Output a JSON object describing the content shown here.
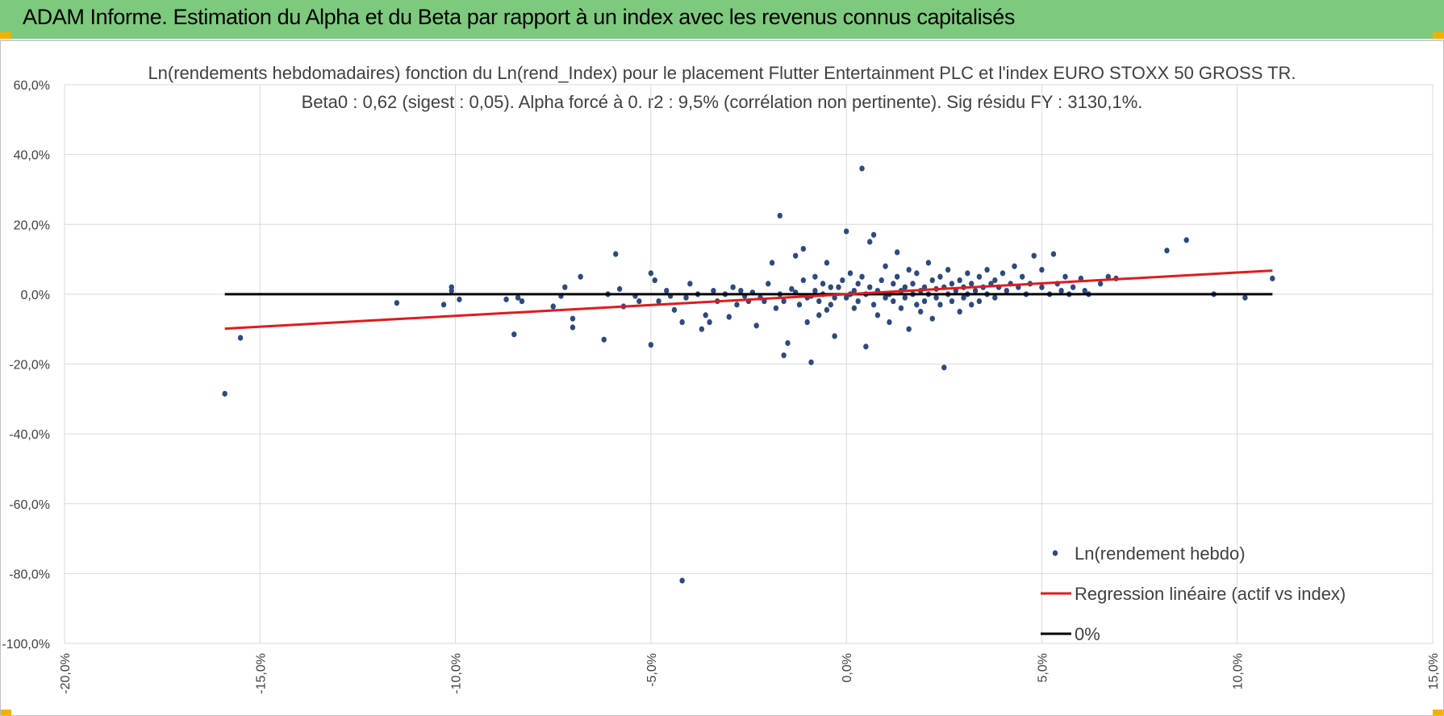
{
  "banner": {
    "title": "ADAM Informe. Estimation du Alpha et du Beta par rapport à un index avec les revenus connus capitalisés"
  },
  "colors": {
    "banner": "#7dc97d",
    "points": "#2e4a7d",
    "regression": "#e31a1c",
    "zero": "#000000",
    "grid": "#d9d9d9",
    "accent": "#f2b100"
  },
  "chart_data": {
    "type": "scatter",
    "title": "Ln(rendements hebdomadaires) fonction du Ln(rend_Index) pour le placement Flutter Entertainment PLC et l'index EURO STOXX 50 GROSS TR.",
    "subtitle": "Beta0 : 0,62 (sigest : 0,05).  Alpha forcé à 0. r2 : 9,5% (corrélation non pertinente). Sig résidu FY : 3130,1%.",
    "xlim": [
      -0.2,
      0.15
    ],
    "ylim": [
      -1.0,
      0.6
    ],
    "x_ticks": [
      -0.2,
      -0.15,
      -0.1,
      -0.05,
      0.0,
      0.05,
      0.1,
      0.15
    ],
    "x_tick_labels": [
      "-20,0%",
      "-15,0%",
      "-10,0%",
      "-5,0%",
      "0,0%",
      "5,0%",
      "10,0%",
      "15,0%"
    ],
    "y_ticks": [
      0.6,
      0.4,
      0.2,
      0.0,
      -0.2,
      -0.4,
      -0.6,
      -0.8,
      -1.0
    ],
    "y_tick_labels": [
      "60,0%",
      "40,0%",
      "20,0%",
      "0,0%",
      "-20,0%",
      "-40,0%",
      "-60,0%",
      "-80,0%",
      "-100,0%"
    ],
    "legend": {
      "position": "bottom-right",
      "entries": [
        "Ln(rendement hebdo)",
        "Regression linéaire (actif vs index)",
        "0%"
      ]
    },
    "series": [
      {
        "name": "Ln(rendement hebdo)",
        "kind": "scatter",
        "points": [
          [
            -0.159,
            -0.285
          ],
          [
            -0.155,
            -0.125
          ],
          [
            -0.115,
            -0.025
          ],
          [
            -0.103,
            -0.03
          ],
          [
            -0.101,
            0.01
          ],
          [
            -0.101,
            0.02
          ],
          [
            -0.099,
            -0.015
          ],
          [
            -0.087,
            -0.015
          ],
          [
            -0.085,
            -0.115
          ],
          [
            -0.084,
            -0.01
          ],
          [
            -0.083,
            -0.02
          ],
          [
            -0.075,
            -0.035
          ],
          [
            -0.073,
            -0.005
          ],
          [
            -0.072,
            0.02
          ],
          [
            -0.07,
            -0.07
          ],
          [
            -0.07,
            -0.095
          ],
          [
            -0.068,
            0.05
          ],
          [
            -0.062,
            -0.13
          ],
          [
            -0.061,
            0.0
          ],
          [
            -0.059,
            0.115
          ],
          [
            -0.058,
            0.015
          ],
          [
            -0.057,
            -0.035
          ],
          [
            -0.054,
            -0.005
          ],
          [
            -0.053,
            -0.02
          ],
          [
            -0.05,
            -0.145
          ],
          [
            -0.05,
            0.06
          ],
          [
            -0.049,
            0.04
          ],
          [
            -0.048,
            -0.02
          ],
          [
            -0.046,
            0.01
          ],
          [
            -0.045,
            -0.005
          ],
          [
            -0.044,
            -0.045
          ],
          [
            -0.042,
            -0.82
          ],
          [
            -0.042,
            -0.08
          ],
          [
            -0.041,
            -0.01
          ],
          [
            -0.04,
            0.03
          ],
          [
            -0.038,
            0.0
          ],
          [
            -0.037,
            -0.1
          ],
          [
            -0.036,
            -0.06
          ],
          [
            -0.035,
            -0.08
          ],
          [
            -0.034,
            0.01
          ],
          [
            -0.033,
            -0.02
          ],
          [
            -0.031,
            0.0
          ],
          [
            -0.03,
            -0.065
          ],
          [
            -0.029,
            0.02
          ],
          [
            -0.028,
            -0.03
          ],
          [
            -0.027,
            0.01
          ],
          [
            -0.026,
            -0.005
          ],
          [
            -0.025,
            -0.02
          ],
          [
            -0.024,
            0.005
          ],
          [
            -0.023,
            -0.09
          ],
          [
            -0.022,
            -0.01
          ],
          [
            -0.021,
            -0.02
          ],
          [
            -0.02,
            0.03
          ],
          [
            -0.019,
            0.09
          ],
          [
            -0.018,
            -0.04
          ],
          [
            -0.017,
            0.0
          ],
          [
            -0.016,
            -0.02
          ],
          [
            -0.015,
            -0.14
          ],
          [
            -0.014,
            0.015
          ],
          [
            -0.013,
            0.005
          ],
          [
            -0.012,
            -0.03
          ],
          [
            -0.011,
            0.04
          ],
          [
            -0.01,
            -0.01
          ],
          [
            -0.009,
            -0.005
          ],
          [
            -0.008,
            0.01
          ],
          [
            -0.007,
            -0.02
          ],
          [
            -0.006,
            0.0
          ],
          [
            -0.005,
            -0.045
          ],
          [
            -0.004,
            0.02
          ],
          [
            -0.003,
            -0.01
          ],
          [
            -0.017,
            0.225
          ],
          [
            -0.016,
            -0.175
          ],
          [
            -0.013,
            0.11
          ],
          [
            -0.011,
            0.13
          ],
          [
            -0.01,
            -0.08
          ],
          [
            -0.009,
            -0.195
          ],
          [
            -0.008,
            0.05
          ],
          [
            -0.007,
            -0.06
          ],
          [
            -0.006,
            0.03
          ],
          [
            -0.005,
            0.09
          ],
          [
            -0.004,
            -0.03
          ],
          [
            -0.003,
            -0.12
          ],
          [
            -0.002,
            0.02
          ],
          [
            -0.001,
            0.04
          ],
          [
            0.0,
            -0.01
          ],
          [
            0.0,
            0.18
          ],
          [
            0.001,
            0.0
          ],
          [
            0.001,
            0.06
          ],
          [
            0.002,
            -0.04
          ],
          [
            0.002,
            0.01
          ],
          [
            0.003,
            0.03
          ],
          [
            0.003,
            -0.02
          ],
          [
            0.004,
            0.36
          ],
          [
            0.004,
            0.05
          ],
          [
            0.005,
            -0.15
          ],
          [
            0.005,
            0.0
          ],
          [
            0.006,
            0.15
          ],
          [
            0.006,
            0.02
          ],
          [
            0.007,
            -0.03
          ],
          [
            0.007,
            0.17
          ],
          [
            0.008,
            0.01
          ],
          [
            0.008,
            -0.06
          ],
          [
            0.009,
            0.04
          ],
          [
            0.01,
            -0.01
          ],
          [
            0.01,
            0.08
          ],
          [
            0.011,
            0.0
          ],
          [
            0.011,
            -0.08
          ],
          [
            0.012,
            0.03
          ],
          [
            0.012,
            -0.02
          ],
          [
            0.013,
            0.05
          ],
          [
            0.013,
            0.12
          ],
          [
            0.014,
            -0.04
          ],
          [
            0.014,
            0.01
          ],
          [
            0.015,
            0.02
          ],
          [
            0.015,
            -0.01
          ],
          [
            0.016,
            0.07
          ],
          [
            0.016,
            -0.1
          ],
          [
            0.017,
            0.0
          ],
          [
            0.017,
            0.03
          ],
          [
            0.018,
            -0.03
          ],
          [
            0.018,
            0.06
          ],
          [
            0.019,
            0.01
          ],
          [
            0.019,
            -0.05
          ],
          [
            0.02,
            0.02
          ],
          [
            0.02,
            -0.02
          ],
          [
            0.021,
            0.09
          ],
          [
            0.021,
            0.0
          ],
          [
            0.022,
            0.04
          ],
          [
            0.022,
            -0.07
          ],
          [
            0.023,
            0.015
          ],
          [
            0.023,
            -0.01
          ],
          [
            0.024,
            0.05
          ],
          [
            0.024,
            -0.03
          ],
          [
            0.025,
            0.02
          ],
          [
            0.025,
            -0.21
          ],
          [
            0.026,
            0.0
          ],
          [
            0.026,
            0.07
          ],
          [
            0.027,
            -0.02
          ],
          [
            0.027,
            0.03
          ],
          [
            0.028,
            0.01
          ],
          [
            0.029,
            -0.05
          ],
          [
            0.029,
            0.04
          ],
          [
            0.03,
            0.02
          ],
          [
            0.03,
            -0.01
          ],
          [
            0.031,
            0.06
          ],
          [
            0.031,
            0.0
          ],
          [
            0.032,
            -0.03
          ],
          [
            0.032,
            0.03
          ],
          [
            0.033,
            0.01
          ],
          [
            0.034,
            -0.02
          ],
          [
            0.034,
            0.05
          ],
          [
            0.035,
            0.02
          ],
          [
            0.036,
            0.0
          ],
          [
            0.036,
            0.07
          ],
          [
            0.037,
            0.03
          ],
          [
            0.038,
            -0.01
          ],
          [
            0.038,
            0.04
          ],
          [
            0.039,
            0.02
          ],
          [
            0.04,
            0.06
          ],
          [
            0.041,
            0.01
          ],
          [
            0.042,
            0.03
          ],
          [
            0.043,
            0.08
          ],
          [
            0.044,
            0.02
          ],
          [
            0.045,
            0.05
          ],
          [
            0.046,
            0.0
          ],
          [
            0.047,
            0.03
          ],
          [
            0.048,
            0.11
          ],
          [
            0.05,
            0.02
          ],
          [
            0.05,
            0.07
          ],
          [
            0.052,
            0.0
          ],
          [
            0.053,
            0.115
          ],
          [
            0.054,
            0.03
          ],
          [
            0.055,
            0.01
          ],
          [
            0.056,
            0.05
          ],
          [
            0.057,
            0.0
          ],
          [
            0.058,
            0.02
          ],
          [
            0.06,
            0.045
          ],
          [
            0.061,
            0.01
          ],
          [
            0.062,
            0.0
          ],
          [
            0.065,
            0.03
          ],
          [
            0.067,
            0.05
          ],
          [
            0.069,
            0.045
          ],
          [
            0.082,
            0.125
          ],
          [
            0.087,
            0.155
          ],
          [
            0.094,
            0.0
          ],
          [
            0.102,
            -0.01
          ],
          [
            0.109,
            0.045
          ]
        ]
      },
      {
        "name": "Regression linéaire (actif vs index)",
        "kind": "line",
        "slope": 0.62,
        "x_range": [
          -0.159,
          0.109
        ]
      },
      {
        "name": "0%",
        "kind": "line",
        "y": 0.0,
        "x_range": [
          -0.159,
          0.109
        ]
      }
    ]
  }
}
